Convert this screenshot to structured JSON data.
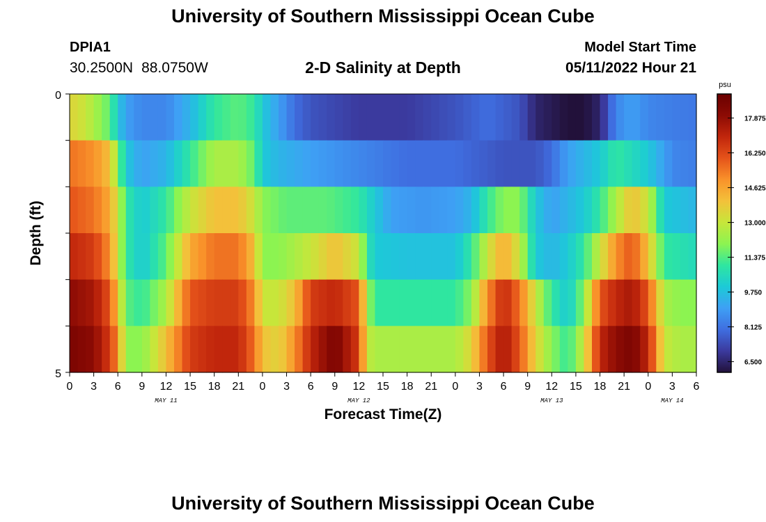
{
  "header": {
    "title": "University of Southern Mississippi Ocean Cube",
    "station": "DPIA1",
    "lat": "30.2500N",
    "lon": "88.0750W",
    "subtitle": "2-D Salinity at Depth",
    "start_label": "Model Start Time",
    "start_value": "05/11/2022 Hour 21"
  },
  "footer": {
    "title": "University of Southern Mississippi Ocean Cube"
  },
  "chart_data": {
    "type": "heatmap",
    "title": "2-D Salinity at Depth",
    "xlabel": "Forecast Time(Z)",
    "ylabel": "Depth (ft)",
    "y_ticks": [
      "0",
      "5"
    ],
    "ylim": [
      0,
      5
    ],
    "x_tick_labels": [
      "0",
      "3",
      "6",
      "9",
      "12",
      "15",
      "18",
      "21",
      "0",
      "3",
      "6",
      "9",
      "12",
      "15",
      "18",
      "21",
      "0",
      "3",
      "6",
      "9",
      "12",
      "15",
      "18",
      "21",
      "0",
      "3",
      "6"
    ],
    "date_labels": [
      {
        "label": "MAY 11",
        "hour": 12
      },
      {
        "label": "MAY 12",
        "hour": 36
      },
      {
        "label": "MAY 13",
        "hour": 60
      },
      {
        "label": "MAY 14",
        "hour": 75
      }
    ],
    "xlim_hours": [
      0,
      78
    ],
    "colorbar": {
      "unit": "psu",
      "ticks": [
        "17.875",
        "16.250",
        "14.625",
        "13.000",
        "11.375",
        "9.750",
        "8.125",
        "6.500"
      ],
      "range": [
        6.0,
        19.0
      ],
      "colors": [
        "#22113a",
        "#3b3a9e",
        "#3f6ee0",
        "#3ea0f5",
        "#1ccad7",
        "#2fe6a0",
        "#8cf451",
        "#c7e63a",
        "#f3c13a",
        "#f9922a",
        "#e5531a",
        "#c1260c",
        "#8c0b04",
        "#6a0000"
      ]
    },
    "row_profiles": [
      [
        [
          0,
          13.5
        ],
        [
          2,
          13
        ],
        [
          4,
          12
        ],
        [
          5,
          11.5
        ],
        [
          6,
          10
        ],
        [
          7,
          9
        ],
        [
          9,
          8.5
        ],
        [
          12,
          8.5
        ],
        [
          15,
          9.5
        ],
        [
          18,
          11
        ],
        [
          21,
          11.5
        ],
        [
          23,
          11
        ],
        [
          24,
          10
        ],
        [
          26,
          9
        ],
        [
          28,
          8
        ],
        [
          30,
          7.5
        ],
        [
          36,
          7
        ],
        [
          42,
          7
        ],
        [
          48,
          7.5
        ],
        [
          52,
          8
        ],
        [
          56,
          7.5
        ],
        [
          58,
          6.5
        ],
        [
          62,
          6
        ],
        [
          62.7,
          4
        ],
        [
          63.3,
          4
        ],
        [
          64,
          6
        ],
        [
          66,
          6.5
        ],
        [
          67,
          7.5
        ],
        [
          68,
          8.5
        ],
        [
          70,
          9
        ],
        [
          72,
          8.5
        ],
        [
          75,
          8.3
        ],
        [
          78,
          8.2
        ]
      ],
      [
        [
          0,
          15.5
        ],
        [
          3,
          15
        ],
        [
          5,
          14
        ],
        [
          6,
          12
        ],
        [
          7,
          10
        ],
        [
          9,
          9
        ],
        [
          12,
          9.5
        ],
        [
          15,
          11
        ],
        [
          18,
          12.5
        ],
        [
          21,
          12.5
        ],
        [
          23,
          11.5
        ],
        [
          24,
          10
        ],
        [
          26,
          9.5
        ],
        [
          30,
          9
        ],
        [
          36,
          8.5
        ],
        [
          42,
          8
        ],
        [
          48,
          8
        ],
        [
          54,
          7.5
        ],
        [
          58,
          7.5
        ],
        [
          60,
          8
        ],
        [
          62,
          9
        ],
        [
          64,
          9.5
        ],
        [
          66,
          10
        ],
        [
          68,
          11
        ],
        [
          70,
          10.5
        ],
        [
          72,
          10
        ],
        [
          75,
          8.5
        ],
        [
          78,
          8.3
        ]
      ],
      [
        [
          0,
          16
        ],
        [
          3,
          15.5
        ],
        [
          5,
          14.5
        ],
        [
          6,
          13
        ],
        [
          7,
          11
        ],
        [
          9,
          10
        ],
        [
          12,
          11
        ],
        [
          15,
          13
        ],
        [
          18,
          14
        ],
        [
          21,
          14
        ],
        [
          23,
          13
        ],
        [
          24,
          12
        ],
        [
          27,
          11.5
        ],
        [
          32,
          11.5
        ],
        [
          36,
          11
        ],
        [
          38,
          10
        ],
        [
          40,
          9
        ],
        [
          44,
          8.8
        ],
        [
          48,
          9
        ],
        [
          50,
          9.5
        ],
        [
          52,
          11
        ],
        [
          54,
          12
        ],
        [
          56,
          12
        ],
        [
          58,
          10
        ],
        [
          60,
          9
        ],
        [
          62,
          9.5
        ],
        [
          64,
          10
        ],
        [
          66,
          11
        ],
        [
          68,
          12.5
        ],
        [
          70,
          14
        ],
        [
          72,
          13
        ],
        [
          74,
          10
        ],
        [
          78,
          9.5
        ]
      ],
      [
        [
          0,
          17
        ],
        [
          3,
          16.5
        ],
        [
          5,
          15
        ],
        [
          6,
          13
        ],
        [
          7,
          11
        ],
        [
          9,
          10
        ],
        [
          12,
          11.5
        ],
        [
          15,
          14.5
        ],
        [
          18,
          15.5
        ],
        [
          21,
          15.5
        ],
        [
          23,
          14
        ],
        [
          24,
          12
        ],
        [
          26,
          12
        ],
        [
          30,
          13
        ],
        [
          33,
          14
        ],
        [
          36,
          13
        ],
        [
          37,
          11
        ],
        [
          38,
          10
        ],
        [
          42,
          9.8
        ],
        [
          48,
          9.8
        ],
        [
          50,
          11
        ],
        [
          52,
          13
        ],
        [
          54,
          14.5
        ],
        [
          56,
          13
        ],
        [
          58,
          10
        ],
        [
          60,
          9.5
        ],
        [
          62,
          10
        ],
        [
          64,
          11
        ],
        [
          66,
          13
        ],
        [
          68,
          15
        ],
        [
          70,
          16
        ],
        [
          72,
          14
        ],
        [
          74,
          11
        ],
        [
          78,
          10.5
        ]
      ],
      [
        [
          0,
          18
        ],
        [
          3,
          17.5
        ],
        [
          5,
          16
        ],
        [
          6,
          14
        ],
        [
          7,
          11.5
        ],
        [
          9,
          11
        ],
        [
          12,
          12.5
        ],
        [
          15,
          16
        ],
        [
          18,
          16.5
        ],
        [
          21,
          16.5
        ],
        [
          23,
          15
        ],
        [
          24,
          13
        ],
        [
          26,
          13
        ],
        [
          28,
          14
        ],
        [
          30,
          16.5
        ],
        [
          33,
          17
        ],
        [
          36,
          16
        ],
        [
          37,
          12.5
        ],
        [
          38,
          11
        ],
        [
          42,
          11
        ],
        [
          48,
          11
        ],
        [
          50,
          12
        ],
        [
          52,
          15
        ],
        [
          54,
          17
        ],
        [
          56,
          15.5
        ],
        [
          58,
          13
        ],
        [
          60,
          11
        ],
        [
          62,
          10
        ],
        [
          64,
          12
        ],
        [
          66,
          16
        ],
        [
          68,
          17
        ],
        [
          70,
          17.5
        ],
        [
          72,
          16
        ],
        [
          74,
          12.5
        ],
        [
          76,
          12
        ],
        [
          78,
          12
        ]
      ],
      [
        [
          0,
          18.5
        ],
        [
          3,
          18
        ],
        [
          5,
          16.5
        ],
        [
          6,
          15
        ],
        [
          7,
          12
        ],
        [
          9,
          12
        ],
        [
          12,
          14
        ],
        [
          15,
          16.5
        ],
        [
          18,
          17
        ],
        [
          21,
          17
        ],
        [
          23,
          15.5
        ],
        [
          24,
          14
        ],
        [
          26,
          13.5
        ],
        [
          28,
          15
        ],
        [
          30,
          17
        ],
        [
          33,
          18.5
        ],
        [
          36,
          16.5
        ],
        [
          37,
          13
        ],
        [
          38,
          12.5
        ],
        [
          42,
          12.5
        ],
        [
          48,
          12.5
        ],
        [
          50,
          13.5
        ],
        [
          52,
          16
        ],
        [
          54,
          17.5
        ],
        [
          56,
          16
        ],
        [
          58,
          13.5
        ],
        [
          60,
          12
        ],
        [
          62,
          11
        ],
        [
          64,
          13
        ],
        [
          66,
          17
        ],
        [
          68,
          18
        ],
        [
          70,
          18.5
        ],
        [
          72,
          17
        ],
        [
          74,
          13
        ],
        [
          76,
          12.5
        ],
        [
          78,
          12.5
        ]
      ]
    ]
  }
}
